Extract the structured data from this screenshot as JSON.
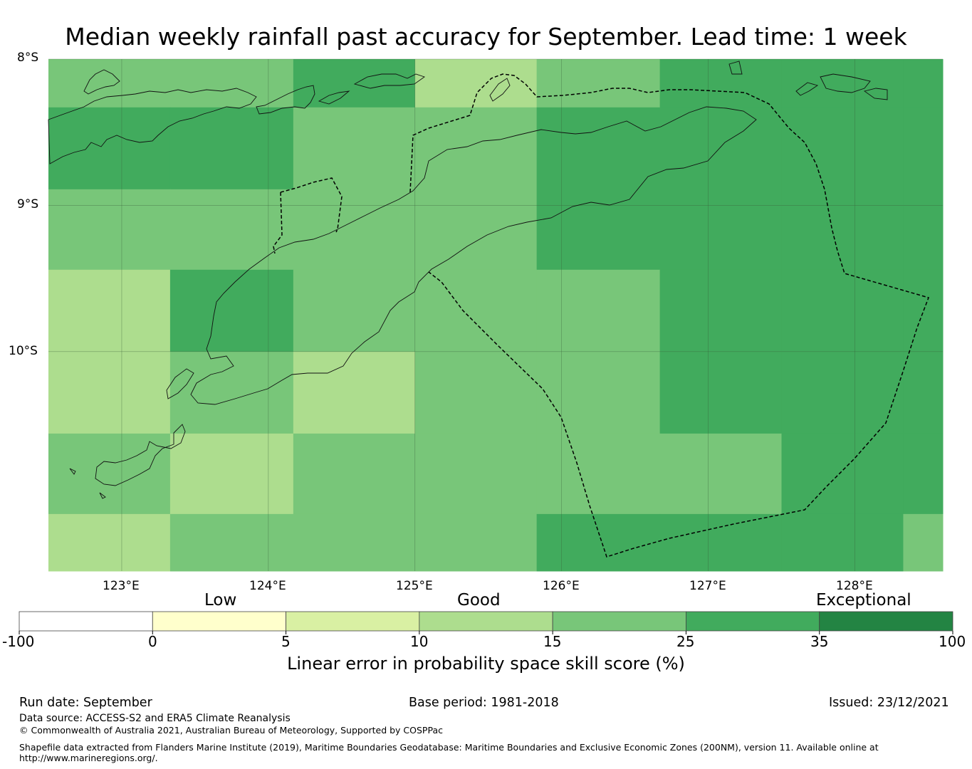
{
  "title": "Median weekly rainfall past accuracy for September. Lead time: 1 week",
  "map": {
    "lon_range": [
      122.5,
      128.6
    ],
    "lat_range": [
      -11.5,
      -8.0
    ],
    "lon_ticks": [
      {
        "value": 123,
        "label": "123°E"
      },
      {
        "value": 124,
        "label": "124°E"
      },
      {
        "value": 125,
        "label": "125°E"
      },
      {
        "value": 126,
        "label": "126°E"
      },
      {
        "value": 127,
        "label": "127°E"
      },
      {
        "value": 128,
        "label": "128°E"
      }
    ],
    "lat_ticks": [
      {
        "value": -8,
        "label": "8°S"
      },
      {
        "value": -9,
        "label": "9°S"
      },
      {
        "value": -10,
        "label": "10°S"
      }
    ],
    "grid_lon_edges": [
      122.5,
      123.33,
      124.17,
      125.0,
      125.83,
      126.67,
      127.5,
      128.33,
      128.6
    ],
    "grid_lat_edges": [
      -8.0,
      -8.33,
      -8.89,
      -9.44,
      -10.0,
      -10.56,
      -11.11,
      -11.5
    ],
    "cell_classes": [
      [
        4,
        4,
        5,
        3,
        4,
        5,
        5,
        5
      ],
      [
        5,
        5,
        4,
        4,
        5,
        5,
        5,
        5
      ],
      [
        4,
        4,
        4,
        4,
        5,
        5,
        5,
        5
      ],
      [
        3,
        5,
        4,
        4,
        4,
        5,
        5,
        5
      ],
      [
        3,
        4,
        3,
        4,
        4,
        5,
        5,
        5
      ],
      [
        4,
        3,
        4,
        4,
        4,
        4,
        5,
        5
      ],
      [
        3,
        4,
        4,
        4,
        5,
        5,
        5,
        4
      ]
    ]
  },
  "colorbar": {
    "category_labels": [
      "Low",
      "Good",
      "Exceptional"
    ],
    "boundaries": [
      "-100",
      "0",
      "5",
      "10",
      "15",
      "25",
      "35",
      "100"
    ],
    "colors": [
      "#ffffff",
      "#ffffcc",
      "#d9f0a3",
      "#addd8e",
      "#78c679",
      "#41ab5d",
      "#238443"
    ],
    "label": "Linear error in probability space skill score (%)"
  },
  "footer": {
    "run_date": "Run date: September",
    "base_period": "Base period: 1981-2018",
    "issued": "Issued: 23/12/2021",
    "data_source": "Data source: ACCESS-S2 and ERA5 Climate Reanalysis",
    "copyright": "© Commonwealth of Australia 2021, Australian Bureau of Meteorology, Supported by COSPPac",
    "shapefile_line1": "Shapefile data extracted from Flanders Marine Institute (2019), Maritime Boundaries Geodatabase: Maritime Boundaries and Exclusive Economic Zones (200NM), version 11. Available online at",
    "shapefile_line2": "http://www.marineregions.org/."
  }
}
